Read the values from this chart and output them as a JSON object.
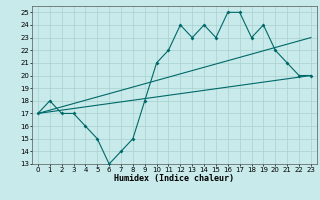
{
  "title": "",
  "xlabel": "Humidex (Indice chaleur)",
  "ylabel": "",
  "bg_color": "#c8eaea",
  "grid_color": "#a8d0d0",
  "line_color": "#006868",
  "xlim": [
    -0.5,
    23.5
  ],
  "ylim": [
    13,
    25.5
  ],
  "yticks": [
    13,
    14,
    15,
    16,
    17,
    18,
    19,
    20,
    21,
    22,
    23,
    24,
    25
  ],
  "xticks": [
    0,
    1,
    2,
    3,
    4,
    5,
    6,
    7,
    8,
    9,
    10,
    11,
    12,
    13,
    14,
    15,
    16,
    17,
    18,
    19,
    20,
    21,
    22,
    23
  ],
  "zigzag_x": [
    0,
    1,
    2,
    3,
    4,
    5,
    6,
    7,
    8,
    9,
    10,
    11,
    12,
    13,
    14,
    15,
    16,
    17,
    18,
    19,
    20,
    21,
    22,
    23
  ],
  "zigzag_y": [
    17,
    18,
    17,
    17,
    16,
    15,
    13,
    14,
    15,
    18,
    21,
    22,
    24,
    23,
    24,
    23,
    25,
    25,
    23,
    24,
    22,
    21,
    20,
    20
  ],
  "upper_line_x": [
    0,
    23
  ],
  "upper_line_y": [
    17,
    23
  ],
  "lower_line_x": [
    0,
    23
  ],
  "lower_line_y": [
    17,
    20
  ],
  "tick_fontsize": 5,
  "xlabel_fontsize": 6,
  "marker_size": 2.0,
  "line_width": 0.8
}
